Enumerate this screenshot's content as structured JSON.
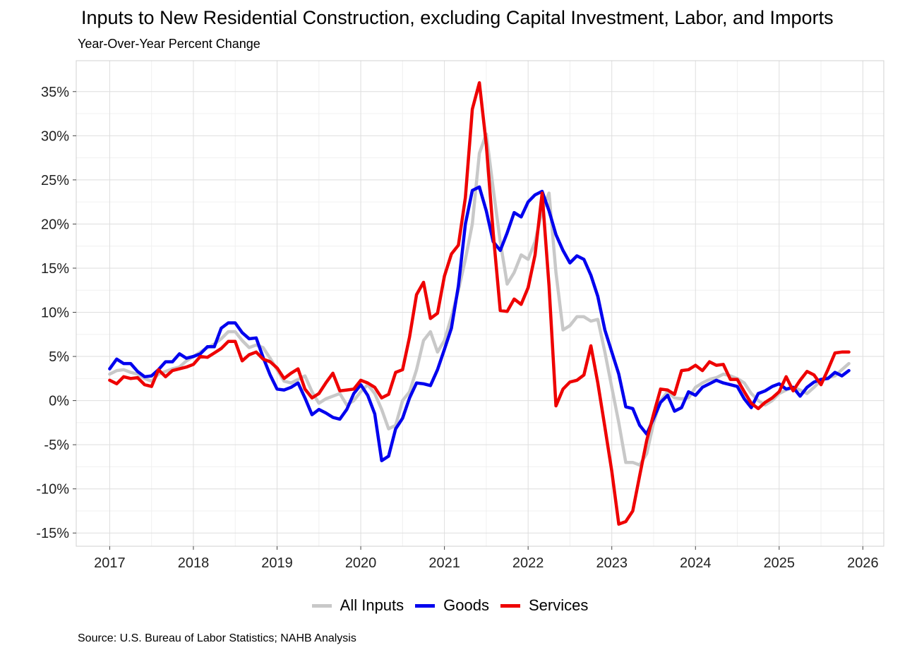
{
  "title": "Inputs to New Residential Construction, excluding Capital Investment, Labor, and Imports",
  "subtitle": "Year-Over-Year Percent Change",
  "source": "Source: U.S. Bureau of Labor Statistics; NAHB Analysis",
  "chart_data": {
    "type": "line",
    "title": "Inputs to New Residential Construction, excluding Capital Investment, Labor, and Imports",
    "subtitle": "Year-Over-Year Percent Change",
    "xlim": [
      2016.6,
      2026.25
    ],
    "ylim": [
      -16.5,
      38.5
    ],
    "x_ticks": [
      2017,
      2018,
      2019,
      2020,
      2021,
      2022,
      2023,
      2024,
      2025,
      2026
    ],
    "y_ticks": [
      -15,
      -10,
      -5,
      0,
      5,
      10,
      15,
      20,
      25,
      30,
      35
    ],
    "y_tick_labels": [
      "-15%",
      "-10%",
      "-5%",
      "0%",
      "5%",
      "10%",
      "15%",
      "20%",
      "25%",
      "30%",
      "35%"
    ],
    "grid": true,
    "legend_position": "bottom",
    "series": [
      {
        "name": "All Inputs",
        "color": "#c8c8c8",
        "x": [
          2017.0,
          2017.083,
          2017.167,
          2017.25,
          2017.333,
          2017.417,
          2017.5,
          2017.583,
          2017.667,
          2017.75,
          2017.833,
          2017.917,
          2018.0,
          2018.083,
          2018.167,
          2018.25,
          2018.333,
          2018.417,
          2018.5,
          2018.583,
          2018.667,
          2018.75,
          2018.833,
          2018.917,
          2019.0,
          2019.083,
          2019.167,
          2019.25,
          2019.333,
          2019.417,
          2019.5,
          2019.583,
          2019.667,
          2019.75,
          2019.833,
          2019.917,
          2020.0,
          2020.083,
          2020.167,
          2020.25,
          2020.333,
          2020.417,
          2020.5,
          2020.583,
          2020.667,
          2020.75,
          2020.833,
          2020.917,
          2021.0,
          2021.083,
          2021.167,
          2021.25,
          2021.333,
          2021.417,
          2021.5,
          2021.583,
          2021.667,
          2021.75,
          2021.833,
          2021.917,
          2022.0,
          2022.083,
          2022.167,
          2022.25,
          2022.333,
          2022.417,
          2022.5,
          2022.583,
          2022.667,
          2022.75,
          2022.833,
          2022.917,
          2023.0,
          2023.083,
          2023.167,
          2023.25,
          2023.333,
          2023.417,
          2023.5,
          2023.583,
          2023.667,
          2023.75,
          2023.833,
          2023.917,
          2024.0,
          2024.083,
          2024.167,
          2024.25,
          2024.333,
          2024.417,
          2024.5,
          2024.583,
          2024.667,
          2024.75,
          2024.833,
          2024.917,
          2025.0,
          2025.083,
          2025.167,
          2025.25,
          2025.333,
          2025.417,
          2025.5,
          2025.583,
          2025.667,
          2025.75,
          2025.833
        ],
        "values": [
          3.0,
          3.4,
          3.5,
          3.2,
          3.0,
          2.5,
          2.2,
          3.0,
          3.3,
          3.6,
          3.8,
          4.5,
          5.0,
          5.5,
          6.0,
          6.4,
          7.0,
          7.8,
          7.8,
          6.8,
          6.0,
          6.3,
          6.0,
          4.8,
          3.5,
          2.2,
          2.0,
          2.4,
          2.8,
          1.0,
          -0.3,
          0.2,
          0.5,
          0.8,
          -0.5,
          0.0,
          1.0,
          1.8,
          0.8,
          -1.0,
          -3.2,
          -2.8,
          0.0,
          1.0,
          3.5,
          6.8,
          7.8,
          5.5,
          6.8,
          9.5,
          12.5,
          16.0,
          20.0,
          28.0,
          30.2,
          24.0,
          18.0,
          13.2,
          14.5,
          16.5,
          16.0,
          18.0,
          21.5,
          23.5,
          14.5,
          8.0,
          8.5,
          9.5,
          9.5,
          9.0,
          9.2,
          5.5,
          1.5,
          -2.5,
          -7.0,
          -7.0,
          -7.3,
          -6.0,
          -2.5,
          0.0,
          1.0,
          0.3,
          0.2,
          0.3,
          1.5,
          2.0,
          2.4,
          2.6,
          3.0,
          2.8,
          2.5,
          2.0,
          0.8,
          0.0,
          -0.5,
          0.0,
          0.8,
          1.2,
          1.5,
          1.2,
          0.8,
          1.5,
          2.3,
          2.6,
          2.8,
          3.5,
          4.2
        ]
      },
      {
        "name": "Goods",
        "color": "#0000ee",
        "x": [
          2017.0,
          2017.083,
          2017.167,
          2017.25,
          2017.333,
          2017.417,
          2017.5,
          2017.583,
          2017.667,
          2017.75,
          2017.833,
          2017.917,
          2018.0,
          2018.083,
          2018.167,
          2018.25,
          2018.333,
          2018.417,
          2018.5,
          2018.583,
          2018.667,
          2018.75,
          2018.833,
          2018.917,
          2019.0,
          2019.083,
          2019.167,
          2019.25,
          2019.333,
          2019.417,
          2019.5,
          2019.583,
          2019.667,
          2019.75,
          2019.833,
          2019.917,
          2020.0,
          2020.083,
          2020.167,
          2020.25,
          2020.333,
          2020.417,
          2020.5,
          2020.583,
          2020.667,
          2020.75,
          2020.833,
          2020.917,
          2021.0,
          2021.083,
          2021.167,
          2021.25,
          2021.333,
          2021.417,
          2021.5,
          2021.583,
          2021.667,
          2021.75,
          2021.833,
          2021.917,
          2022.0,
          2022.083,
          2022.167,
          2022.25,
          2022.333,
          2022.417,
          2022.5,
          2022.583,
          2022.667,
          2022.75,
          2022.833,
          2022.917,
          2023.0,
          2023.083,
          2023.167,
          2023.25,
          2023.333,
          2023.417,
          2023.5,
          2023.583,
          2023.667,
          2023.75,
          2023.833,
          2023.917,
          2024.0,
          2024.083,
          2024.167,
          2024.25,
          2024.333,
          2024.417,
          2024.5,
          2024.583,
          2024.667,
          2024.75,
          2024.833,
          2024.917,
          2025.0,
          2025.083,
          2025.167,
          2025.25,
          2025.333,
          2025.417,
          2025.5,
          2025.583,
          2025.667,
          2025.75,
          2025.833
        ],
        "values": [
          3.6,
          4.7,
          4.2,
          4.2,
          3.3,
          2.7,
          2.8,
          3.5,
          4.4,
          4.4,
          5.3,
          4.8,
          5.0,
          5.3,
          6.1,
          6.1,
          8.2,
          8.8,
          8.8,
          7.7,
          7.0,
          7.1,
          4.9,
          2.9,
          1.3,
          1.2,
          1.5,
          2.0,
          0.3,
          -1.6,
          -1.0,
          -1.4,
          -1.9,
          -2.1,
          -1.0,
          0.8,
          1.8,
          0.6,
          -1.5,
          -6.8,
          -6.3,
          -3.2,
          -2.0,
          0.3,
          2.0,
          1.9,
          1.7,
          3.5,
          5.8,
          8.2,
          13.0,
          20.0,
          23.8,
          24.2,
          21.5,
          18.0,
          17.0,
          19.0,
          21.3,
          20.8,
          22.5,
          23.3,
          23.7,
          21.5,
          18.8,
          17.0,
          15.6,
          16.4,
          16.0,
          14.2,
          11.8,
          8.0,
          5.5,
          3.0,
          -0.7,
          -0.9,
          -2.8,
          -3.8,
          -2.0,
          -0.2,
          0.6,
          -1.2,
          -0.8,
          1.0,
          0.6,
          1.5,
          1.9,
          2.3,
          2.0,
          1.8,
          1.6,
          0.2,
          -0.8,
          0.8,
          1.1,
          1.6,
          1.9,
          1.3,
          1.5,
          0.5,
          1.5,
          2.1,
          2.4,
          2.5,
          3.2,
          2.8,
          3.4
        ]
      },
      {
        "name": "Services",
        "color": "#ee0000",
        "x": [
          2017.0,
          2017.083,
          2017.167,
          2017.25,
          2017.333,
          2017.417,
          2017.5,
          2017.583,
          2017.667,
          2017.75,
          2017.833,
          2017.917,
          2018.0,
          2018.083,
          2018.167,
          2018.25,
          2018.333,
          2018.417,
          2018.5,
          2018.583,
          2018.667,
          2018.75,
          2018.833,
          2018.917,
          2019.0,
          2019.083,
          2019.167,
          2019.25,
          2019.333,
          2019.417,
          2019.5,
          2019.583,
          2019.667,
          2019.75,
          2019.833,
          2019.917,
          2020.0,
          2020.083,
          2020.167,
          2020.25,
          2020.333,
          2020.417,
          2020.5,
          2020.583,
          2020.667,
          2020.75,
          2020.833,
          2020.917,
          2021.0,
          2021.083,
          2021.167,
          2021.25,
          2021.333,
          2021.417,
          2021.5,
          2021.583,
          2021.667,
          2021.75,
          2021.833,
          2021.917,
          2022.0,
          2022.083,
          2022.167,
          2022.25,
          2022.333,
          2022.417,
          2022.5,
          2022.583,
          2022.667,
          2022.75,
          2022.833,
          2022.917,
          2023.0,
          2023.083,
          2023.167,
          2023.25,
          2023.333,
          2023.417,
          2023.5,
          2023.583,
          2023.667,
          2023.75,
          2023.833,
          2023.917,
          2024.0,
          2024.083,
          2024.167,
          2024.25,
          2024.333,
          2024.417,
          2024.5,
          2024.583,
          2024.667,
          2024.75,
          2024.833,
          2024.917,
          2025.0,
          2025.083,
          2025.167,
          2025.25,
          2025.333,
          2025.417,
          2025.5,
          2025.583,
          2025.667,
          2025.75,
          2025.833
        ],
        "values": [
          2.3,
          1.9,
          2.7,
          2.5,
          2.6,
          1.8,
          1.6,
          3.5,
          2.7,
          3.4,
          3.6,
          3.8,
          4.1,
          5.0,
          4.9,
          5.4,
          5.9,
          6.7,
          6.7,
          4.5,
          5.2,
          5.5,
          4.7,
          4.4,
          3.7,
          2.5,
          3.1,
          3.6,
          1.3,
          0.3,
          0.8,
          2.0,
          3.1,
          1.1,
          1.2,
          1.3,
          2.3,
          2.0,
          1.5,
          0.3,
          0.7,
          3.2,
          3.5,
          7.2,
          12.0,
          13.4,
          9.3,
          9.9,
          14.1,
          16.6,
          17.6,
          23.0,
          33.0,
          36.0,
          29.0,
          19.0,
          10.2,
          10.1,
          11.5,
          10.9,
          12.8,
          16.5,
          23.5,
          13.0,
          -0.6,
          1.3,
          2.1,
          2.3,
          2.9,
          6.2,
          2.0,
          -3.0,
          -8.0,
          -14.0,
          -13.7,
          -12.5,
          -8.5,
          -4.5,
          -1.5,
          1.3,
          1.2,
          0.7,
          3.4,
          3.5,
          4.0,
          3.4,
          4.4,
          4.0,
          4.1,
          2.4,
          2.4,
          1.0,
          -0.3,
          -0.9,
          -0.2,
          0.3,
          1.0,
          2.7,
          1.1,
          2.3,
          3.3,
          2.9,
          1.8,
          3.5,
          5.4,
          5.5,
          5.5
        ]
      }
    ]
  }
}
